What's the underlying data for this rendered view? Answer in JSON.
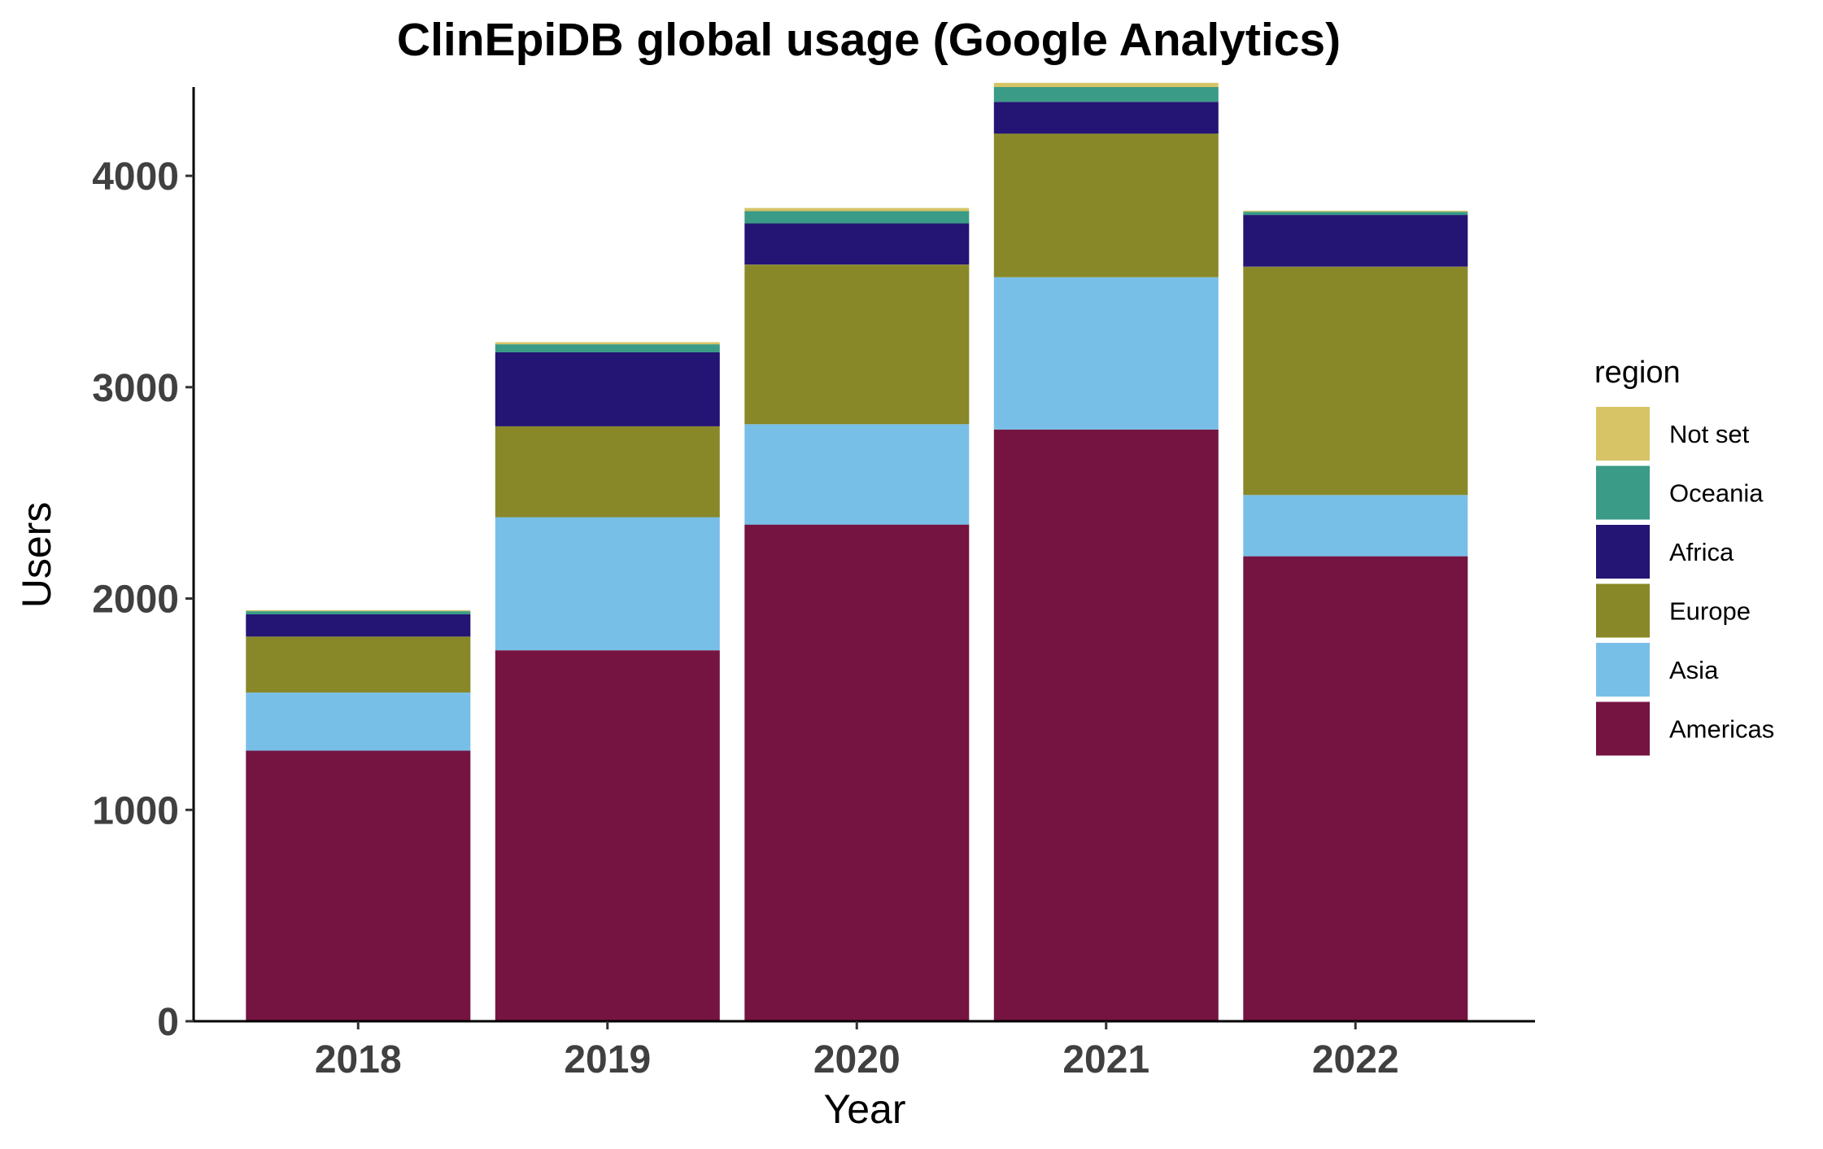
{
  "chart_data": {
    "type": "bar",
    "stacked": true,
    "title": "ClinEpiDB global usage (Google Analytics)",
    "xlabel": "Year",
    "ylabel": "Users",
    "categories": [
      "2018",
      "2019",
      "2020",
      "2021",
      "2022"
    ],
    "ylim": [
      0,
      4420
    ],
    "yticks": [
      0,
      1000,
      2000,
      3000,
      4000
    ],
    "grid": false,
    "legend": {
      "title": "region",
      "position": "right"
    },
    "series": [
      {
        "name": "Americas",
        "color": "#751441",
        "values": [
          1280,
          1755,
          2350,
          2800,
          2200
        ]
      },
      {
        "name": "Asia",
        "color": "#78BFE8",
        "values": [
          275,
          630,
          475,
          720,
          290
        ]
      },
      {
        "name": "Europe",
        "color": "#888828",
        "values": [
          265,
          430,
          755,
          680,
          1080
        ]
      },
      {
        "name": "Africa",
        "color": "#241474",
        "values": [
          105,
          350,
          195,
          150,
          245
        ]
      },
      {
        "name": "Oceania",
        "color": "#3A9B86",
        "values": [
          15,
          38,
          58,
          70,
          15
        ]
      },
      {
        "name": "Not set",
        "color": "#D6C466",
        "values": [
          5,
          10,
          15,
          20,
          5
        ]
      }
    ]
  }
}
